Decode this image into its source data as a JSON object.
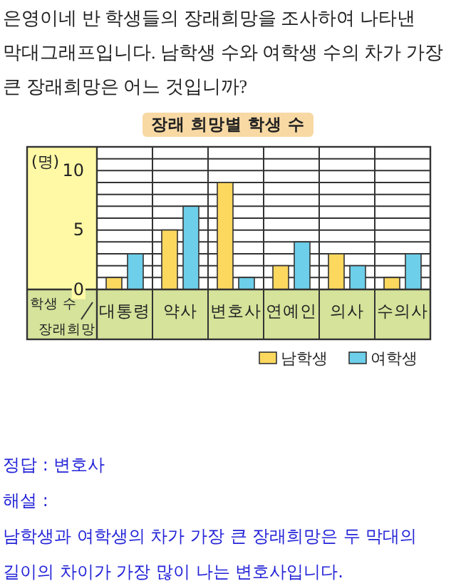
{
  "chart_data": {
    "type": "bar",
    "title": "장래 희망별 학생 수",
    "xlabel": "장래희망",
    "ylabel": "학생 수",
    "annotations": [
      "은영이네 반 학생들의 장래희망을 조사하여 나타낸 막대그래프입니다. 남학생 수와 여학생 수의 차가 가장 큰 장래희망은 어느 것입니까?",
      "(명)",
      "정답 : 변호사",
      "해설 :",
      "남학생과 여학생의 차가 가장 큰 장래희망은 두 막대의 길이의 차이가 가장 많이 나는 변호사입니다."
    ],
    "categories": [
      "대통령",
      "약사",
      "변호사",
      "연예인",
      "의사",
      "수의사"
    ],
    "series": [
      {
        "name": "남학생",
        "color": "#fdd85e",
        "values": [
          1,
          5,
          9,
          2,
          3,
          1
        ]
      },
      {
        "name": "여학생",
        "color": "#6dcfea",
        "values": [
          3,
          7,
          1,
          4,
          2,
          3
        ]
      }
    ],
    "ylim": [
      0,
      12
    ],
    "yticks": [
      0,
      {
        "value": 1,
        "label": null
      },
      {
        "value": 2,
        "label": null
      },
      {
        "value": 3,
        "label": null
      },
      {
        "value": 4,
        "label": null
      },
      5,
      {
        "value": 6,
        "label": null
      },
      {
        "value": 7,
        "label": null
      },
      {
        "value": 8,
        "label": null
      },
      {
        "value": 9,
        "label": null
      },
      10,
      {
        "value": 11,
        "label": null
      },
      {
        "value": 12,
        "label": null
      }
    ],
    "grid": "y",
    "legend": "bottom right"
  }
}
